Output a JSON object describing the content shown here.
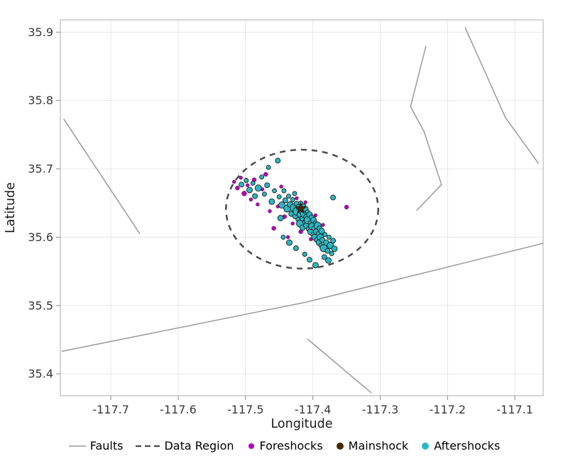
{
  "chart_data": {
    "type": "scatter",
    "title": "",
    "xlabel": "Longitude",
    "ylabel": "Latitude",
    "xlim": [
      -117.775,
      -117.058
    ],
    "ylim": [
      35.368,
      35.918
    ],
    "xticks": [
      -117.7,
      -117.6,
      -117.5,
      -117.4,
      -117.3,
      -117.2,
      -117.1
    ],
    "xtick_labels": [
      "-117.7",
      "-117.6",
      "-117.5",
      "-117.4",
      "-117.3",
      "-117.2",
      "-117.1"
    ],
    "yticks": [
      35.4,
      35.5,
      35.6,
      35.7,
      35.8,
      35.9
    ],
    "ytick_labels": [
      "35.4",
      "35.5",
      "35.6",
      "35.7",
      "35.8",
      "35.9"
    ],
    "grid": true,
    "legend_position": "bottom",
    "style": {
      "background": "#ffffff",
      "grid_color": "#e7e7e7",
      "frame_color": "#adadad",
      "tick_color": "#8a8a8a",
      "tick_label_color": "#383838",
      "fault_color": "#9a9a9a",
      "region_color": "#4a4a4a",
      "foreshock_color": "#b400b4",
      "mainshock_color": "#4a2800",
      "aftershock_color": "#2ab7c3",
      "marker_edge_color": "#1c1c1c"
    },
    "faults": [
      [
        [
          -117.77,
          35.773
        ],
        [
          -117.657,
          35.605
        ]
      ],
      [
        [
          -117.773,
          35.433
        ],
        [
          -117.41,
          35.505
        ],
        [
          -117.058,
          35.591
        ]
      ],
      [
        [
          -117.408,
          35.451
        ],
        [
          -117.313,
          35.372
        ]
      ],
      [
        [
          -117.232,
          35.88
        ],
        [
          -117.255,
          35.791
        ],
        [
          -117.235,
          35.755
        ],
        [
          -117.209,
          35.677
        ],
        [
          -117.246,
          35.639
        ]
      ],
      [
        [
          -117.174,
          35.907
        ],
        [
          -117.114,
          35.775
        ],
        [
          -117.065,
          35.708
        ]
      ]
    ],
    "data_region_ellipse": {
      "center": [
        -117.416,
        35.641
      ],
      "rx": 0.113,
      "ry": 0.087
    },
    "foreshocks": {
      "marker": "circle",
      "points": [
        [
          -117.517,
          35.681,
          2.5
        ],
        [
          -117.512,
          35.672,
          3
        ],
        [
          -117.507,
          35.687,
          2.5
        ],
        [
          -117.502,
          35.664,
          3.5
        ],
        [
          -117.497,
          35.676,
          2.5
        ],
        [
          -117.492,
          35.655,
          2.5
        ],
        [
          -117.487,
          35.684,
          3
        ],
        [
          -117.482,
          35.648,
          2.5
        ],
        [
          -117.475,
          35.67,
          2.5
        ],
        [
          -117.47,
          35.692,
          3
        ],
        [
          -117.464,
          35.638,
          2.5
        ],
        [
          -117.458,
          35.613,
          3
        ],
        [
          -117.452,
          35.645,
          2.5
        ],
        [
          -117.447,
          35.674,
          2.5
        ],
        [
          -117.442,
          35.63,
          3
        ],
        [
          -117.437,
          35.6,
          2.5
        ],
        [
          -117.43,
          35.62,
          2.5
        ],
        [
          -117.424,
          35.657,
          2.5
        ],
        [
          -117.418,
          35.608,
          3
        ],
        [
          -117.411,
          35.651,
          2.5
        ],
        [
          -117.403,
          35.597,
          2.5
        ],
        [
          -117.396,
          35.632,
          2.5
        ],
        [
          -117.385,
          35.618,
          2.5
        ],
        [
          -117.35,
          35.644,
          3
        ]
      ]
    },
    "mainshock": {
      "marker": "star",
      "points": [
        [
          -117.418,
          35.642,
          8
        ]
      ]
    },
    "aftershocks": {
      "marker": "circle",
      "points": [
        [
          -117.506,
          35.677,
          3.5
        ],
        [
          -117.499,
          35.683,
          3
        ],
        [
          -117.494,
          35.669,
          4
        ],
        [
          -117.489,
          35.679,
          3
        ],
        [
          -117.486,
          35.66,
          3.5
        ],
        [
          -117.481,
          35.672,
          4.5
        ],
        [
          -117.476,
          35.688,
          3
        ],
        [
          -117.472,
          35.663,
          3
        ],
        [
          -117.468,
          35.676,
          3.5
        ],
        [
          -117.466,
          35.702,
          3
        ],
        [
          -117.461,
          35.652,
          4
        ],
        [
          -117.457,
          35.668,
          3
        ],
        [
          -117.452,
          35.712,
          3.5
        ],
        [
          -117.45,
          35.659,
          3
        ],
        [
          -117.446,
          35.647,
          4.5
        ],
        [
          -117.443,
          35.668,
          3
        ],
        [
          -117.441,
          35.654,
          3.5
        ],
        [
          -117.438,
          35.642,
          5
        ],
        [
          -117.436,
          35.66,
          3
        ],
        [
          -117.434,
          35.648,
          4
        ],
        [
          -117.432,
          35.634,
          3.5
        ],
        [
          -117.43,
          35.655,
          3
        ],
        [
          -117.428,
          35.643,
          5.5
        ],
        [
          -117.427,
          35.664,
          3
        ],
        [
          -117.426,
          35.631,
          4
        ],
        [
          -117.424,
          35.649,
          3.5
        ],
        [
          -117.423,
          35.638,
          6
        ],
        [
          -117.422,
          35.626,
          3
        ],
        [
          -117.421,
          35.644,
          4
        ],
        [
          -117.42,
          35.633,
          3.5
        ],
        [
          -117.419,
          35.62,
          5
        ],
        [
          -117.418,
          35.65,
          3
        ],
        [
          -117.417,
          35.639,
          4.5
        ],
        [
          -117.416,
          35.627,
          3
        ],
        [
          -117.415,
          35.614,
          4
        ],
        [
          -117.414,
          35.645,
          3.5
        ],
        [
          -117.413,
          35.634,
          5
        ],
        [
          -117.412,
          35.622,
          3
        ],
        [
          -117.411,
          35.641,
          4
        ],
        [
          -117.41,
          35.63,
          3.5
        ],
        [
          -117.409,
          35.617,
          4.5
        ],
        [
          -117.408,
          35.637,
          3
        ],
        [
          -117.407,
          35.625,
          5.5
        ],
        [
          -117.406,
          35.612,
          3.5
        ],
        [
          -117.405,
          35.633,
          4
        ],
        [
          -117.404,
          35.621,
          3
        ],
        [
          -117.403,
          35.608,
          4.5
        ],
        [
          -117.402,
          35.629,
          3.5
        ],
        [
          -117.401,
          35.616,
          5
        ],
        [
          -117.4,
          35.604,
          3
        ],
        [
          -117.399,
          35.625,
          4
        ],
        [
          -117.398,
          35.613,
          3.5
        ],
        [
          -117.397,
          35.6,
          4.5
        ],
        [
          -117.396,
          35.621,
          3
        ],
        [
          -117.395,
          35.608,
          4
        ],
        [
          -117.394,
          35.596,
          3.5
        ],
        [
          -117.393,
          35.617,
          5
        ],
        [
          -117.392,
          35.605,
          3
        ],
        [
          -117.391,
          35.592,
          4
        ],
        [
          -117.39,
          35.613,
          3.5
        ],
        [
          -117.389,
          35.6,
          4.5
        ],
        [
          -117.388,
          35.588,
          3
        ],
        [
          -117.387,
          35.609,
          4
        ],
        [
          -117.386,
          35.596,
          3.5
        ],
        [
          -117.384,
          35.584,
          5
        ],
        [
          -117.382,
          35.604,
          3
        ],
        [
          -117.38,
          35.592,
          4
        ],
        [
          -117.378,
          35.58,
          3.5
        ],
        [
          -117.376,
          35.6,
          3
        ],
        [
          -117.374,
          35.588,
          4.5
        ],
        [
          -117.372,
          35.576,
          3
        ],
        [
          -117.37,
          35.595,
          3.5
        ],
        [
          -117.368,
          35.583,
          4
        ],
        [
          -117.383,
          35.571,
          3.5
        ],
        [
          -117.377,
          35.566,
          4
        ],
        [
          -117.405,
          35.567,
          3.5
        ],
        [
          -117.396,
          35.559,
          4
        ],
        [
          -117.412,
          35.575,
          3
        ],
        [
          -117.425,
          35.584,
          3.5
        ],
        [
          -117.435,
          35.592,
          4
        ],
        [
          -117.444,
          35.6,
          3
        ],
        [
          -117.37,
          35.658,
          3.5
        ],
        [
          -117.448,
          35.628,
          4
        ]
      ]
    },
    "legend": [
      {
        "label": "Faults",
        "swatch": "line"
      },
      {
        "label": "Data Region",
        "swatch": "dashed-line"
      },
      {
        "label": "Foreshocks",
        "swatch": "dot"
      },
      {
        "label": "Mainshock",
        "swatch": "dot"
      },
      {
        "label": "Aftershocks",
        "swatch": "dot"
      }
    ]
  }
}
